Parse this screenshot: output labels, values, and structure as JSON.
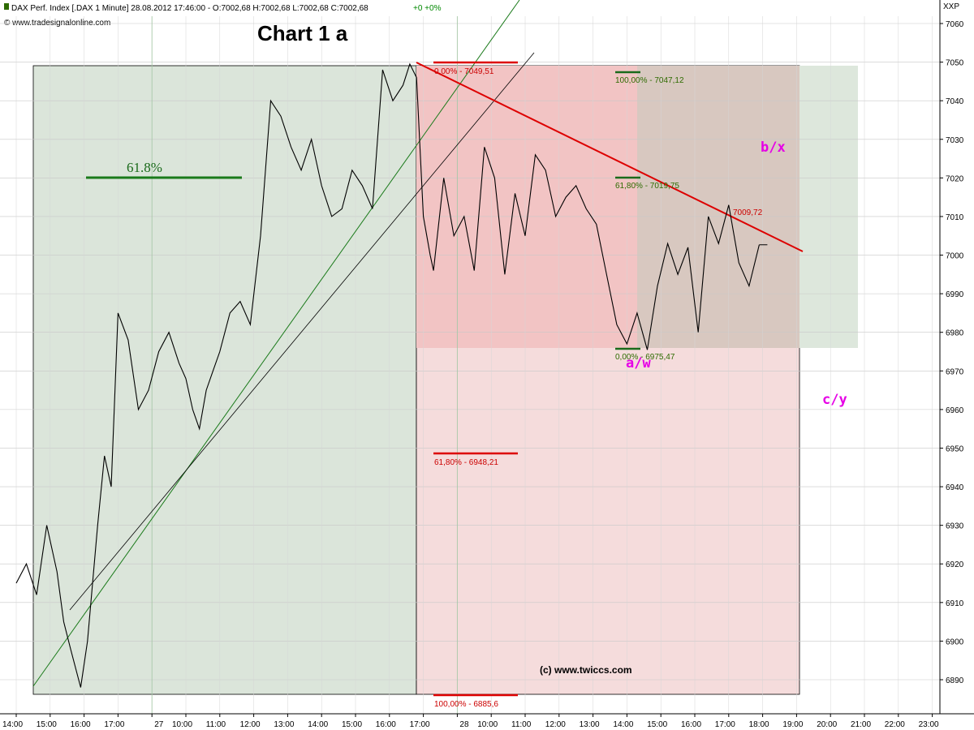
{
  "header": {
    "info": "DAX Perf. Index [.DAX  1 Minute] 28.08.2012 17:46:00 - O:7002,68 H:7002,68 L:7002,68 C:7002,68 ",
    "change": "+0 +0%",
    "source": "© www.tradesignalonline.com",
    "axis_unit": "XXP"
  },
  "colors": {
    "price": "#000000",
    "green_zone": "#dbe5da",
    "red_zone": "#f2c4c4",
    "fib_red": "#cc0000",
    "fib_green": "#2e6b00",
    "wave_label": "#e600e6",
    "trendline": "#dd0000"
  },
  "annotations": {
    "chart_label": "Chart 1 a",
    "fib_green_big": "61.8%",
    "copyright": "(c) www.twiccs.com",
    "trendline_value": "7009,72",
    "wave_bx": "b/x",
    "wave_aw": "a/w",
    "wave_cy": "c/y"
  },
  "chart_data": {
    "type": "line",
    "title": "",
    "xlabel": "",
    "ylabel": "",
    "ylim": [
      6883,
      7063
    ],
    "y_ticks": [
      6890,
      6900,
      6910,
      6920,
      6930,
      6940,
      6950,
      6960,
      6970,
      6980,
      6990,
      7000,
      7010,
      7020,
      7030,
      7040,
      7050,
      7060
    ],
    "x_tick_labels": [
      "14:00",
      "15:00",
      "16:00",
      "17:00",
      "27",
      "10:00",
      "11:00",
      "12:00",
      "13:00",
      "14:00",
      "15:00",
      "16:00",
      "17:00",
      "28",
      "10:00",
      "11:00",
      "12:00",
      "13:00",
      "14:00",
      "15:00",
      "16:00",
      "17:00",
      "18:00",
      "19:00",
      "20:00",
      "21:00",
      "22:00",
      "23:00"
    ],
    "series": [
      {
        "x": [
          0,
          0.3,
          0.6,
          0.9,
          1.2,
          1.4,
          1.6,
          1.9,
          2.1,
          2.4,
          2.6,
          2.8,
          3.0,
          3.3,
          3.6,
          3.9,
          4.2,
          4.5,
          4.8,
          5.0,
          5.2,
          5.4,
          5.6,
          5.8,
          6.0,
          6.3,
          6.6,
          6.9,
          7.2,
          7.5,
          7.8,
          8.1,
          8.4,
          8.7,
          9.0,
          9.3,
          9.6,
          9.9,
          10.2,
          10.5,
          10.8,
          11.1,
          11.4,
          11.6,
          11.8,
          12.0,
          12.2,
          12.3,
          12.6,
          12.9,
          13.2,
          13.5,
          13.8,
          14.1,
          14.4,
          14.7,
          15.0,
          15.3,
          15.6,
          15.9,
          16.2,
          16.5,
          16.8,
          17.1,
          17.4,
          17.7,
          18.0,
          18.3,
          18.6,
          18.9,
          19.2,
          19.5,
          19.8,
          20.1,
          20.4,
          20.7,
          21.0,
          21.3,
          21.6,
          21.9
        ],
        "values": [
          6915,
          6920,
          6912,
          6930,
          6918,
          6905,
          6898,
          6888,
          6900,
          6930,
          6948,
          6940,
          6985,
          6978,
          6960,
          6965,
          6975,
          6980,
          6972,
          6968,
          6960,
          6955,
          6965,
          6970,
          6975,
          6985,
          6988,
          6982,
          7005,
          7040,
          7036,
          7028,
          7022,
          7030,
          7018,
          7010,
          7012,
          7022,
          7018,
          7012,
          7048,
          7040,
          7044,
          7049.51,
          7046,
          7010,
          7000,
          6996,
          7020,
          7005,
          7010,
          6996,
          7028,
          7020,
          6995,
          7016,
          7005,
          7026,
          7022,
          7010,
          7015,
          7018,
          7012,
          7008,
          6995,
          6982,
          6977,
          6985,
          6975.47,
          6992,
          7003,
          6995,
          7002,
          6980,
          7010,
          7003,
          7013,
          6998,
          6992,
          7002.68
        ]
      }
    ],
    "fib_levels_red": [
      {
        "label": "0,00% - 7049,51",
        "value": 7049.51
      },
      {
        "label": "61,80% - 6948,21",
        "value": 6948.21
      },
      {
        "label": "100,00% - 6885,6",
        "value": 6885.6
      }
    ],
    "fib_levels_green": [
      {
        "label": "100,00% - 7047,12",
        "value": 7047.12
      },
      {
        "label": "61,80% - 7019,75",
        "value": 7019.75
      },
      {
        "label": "0,00% - 6975,47",
        "value": 6975.47
      }
    ],
    "grid": true,
    "legend": "none"
  }
}
